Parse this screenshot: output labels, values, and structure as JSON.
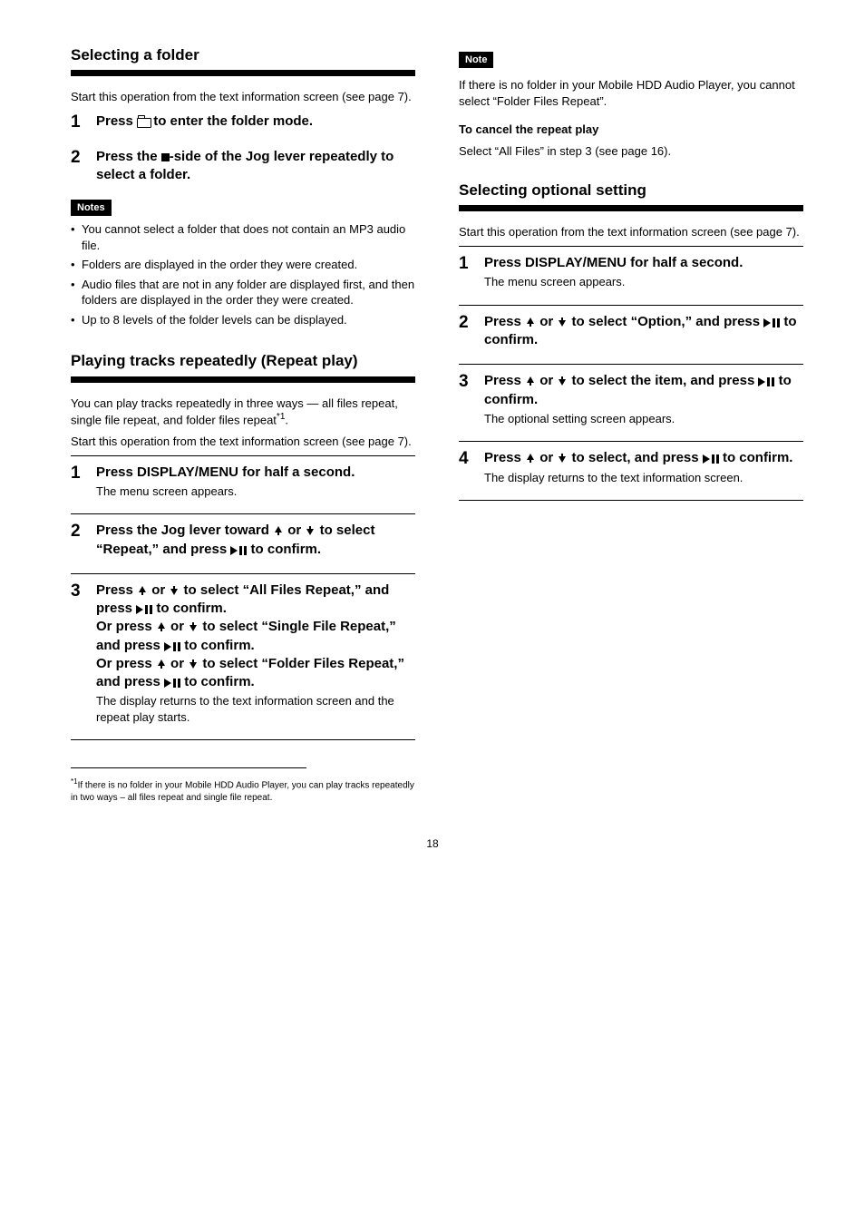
{
  "page_number": "18",
  "left": {
    "folder_section": {
      "title": "Selecting a folder",
      "intro": "Start this operation from the text information screen (see page 7).",
      "steps": [
        {
          "num": "1",
          "html": "Press <span class='folder-icon' data-name='folder-icon' data-interactable='false'></span> to enter the folder mode."
        },
        {
          "num": "2",
          "html": "Press the <span class='stop-icon' data-name='stop-icon' data-interactable='false'></span>-side of the Jog lever repeatedly to select a folder."
        }
      ],
      "note_label": "Notes",
      "notes": [
        "You cannot select a folder that does not contain an MP3 audio file.",
        "Folders are displayed in the order they were created.",
        "Audio files that are not in any folder are displayed first, and then folders are displayed in the order they were created.",
        "Up to 8 levels of the folder levels can be displayed."
      ]
    },
    "repeat_section": {
      "title": "Playing tracks repeatedly (Repeat play)",
      "intro": "You can play tracks repeatedly in three ways — all files repeat, single file repeat, and folder files repeat<span class='sup'>*1</span>.",
      "intro2": "Start this operation from the text information screen (see page 7).",
      "steps": [
        {
          "num": "1",
          "html": "Press DISPLAY/MENU for half a second.<div class='substep'>The menu screen appears.</div>"
        },
        {
          "num": "2",
          "html": "Press the Jog lever toward <svg class='inline-icon' data-name='up-arrow-icon' data-interactable='false' width='12' height='12' viewBox='0 0 12 12'><path d='M6 1 L10 8 L7 8 L7 11 L5 11 L5 8 L2 8 Z' fill='#000'/></svg> or <svg class='inline-icon' data-name='down-arrow-icon' data-interactable='false' width='12' height='12' viewBox='0 0 12 12'><path d='M6 11 L2 4 L5 4 L5 1 L7 1 L7 4 L10 4 Z' fill='#000'/></svg> to select “Repeat,” and press <svg class='inline-icon' data-name='play-pause-icon' data-interactable='false' width='18' height='10' viewBox='0 0 18 10'><path d='M0 0 L8 5 L0 10 Z M10 0 H13 V10 H10 Z M15 0 H18 V10 H15 Z' fill='#000'/></svg> to confirm."
        },
        {
          "num": "3",
          "html": "Press <svg class='inline-icon' data-name='up-arrow-icon' data-interactable='false' width='12' height='12' viewBox='0 0 12 12'><path d='M6 1 L10 8 L7 8 L7 11 L5 11 L5 8 L2 8 Z' fill='#000'/></svg> or <svg class='inline-icon' data-name='down-arrow-icon' data-interactable='false' width='12' height='12' viewBox='0 0 12 12'><path d='M6 11 L2 4 L5 4 L5 1 L7 1 L7 4 L10 4 Z' fill='#000'/></svg> to select “All Files Repeat,” and press <svg class='inline-icon' data-name='play-pause-icon' data-interactable='false' width='18' height='10' viewBox='0 0 18 10'><path d='M0 0 L8 5 L0 10 Z M10 0 H13 V10 H10 Z M15 0 H18 V10 H15 Z' fill='#000'/></svg> to confirm.<br>Or press <svg class='inline-icon' data-name='up-arrow-icon' data-interactable='false' width='12' height='12' viewBox='0 0 12 12'><path d='M6 1 L10 8 L7 8 L7 11 L5 11 L5 8 L2 8 Z' fill='#000'/></svg> or <svg class='inline-icon' data-name='down-arrow-icon' data-interactable='false' width='12' height='12' viewBox='0 0 12 12'><path d='M6 11 L2 4 L5 4 L5 1 L7 1 L7 4 L10 4 Z' fill='#000'/></svg> to select “Single File Repeat,” and press <svg class='inline-icon' data-name='play-pause-icon' data-interactable='false' width='18' height='10' viewBox='0 0 18 10'><path d='M0 0 L8 5 L0 10 Z M10 0 H13 V10 H10 Z M15 0 H18 V10 H15 Z' fill='#000'/></svg> to confirm.<br>Or press <svg class='inline-icon' data-name='up-arrow-icon' data-interactable='false' width='12' height='12' viewBox='0 0 12 12'><path d='M6 1 L10 8 L7 8 L7 11 L5 11 L5 8 L2 8 Z' fill='#000'/></svg> or <svg class='inline-icon' data-name='down-arrow-icon' data-interactable='false' width='12' height='12' viewBox='0 0 12 12'><path d='M6 11 L2 4 L5 4 L5 1 L7 1 L7 4 L10 4 Z' fill='#000'/></svg> to select “Folder Files Repeat,” and press <svg class='inline-icon' data-name='play-pause-icon' data-interactable='false' width='18' height='10' viewBox='0 0 18 10'><path d='M0 0 L8 5 L0 10 Z M10 0 H13 V10 H10 Z M15 0 H18 V10 H15 Z' fill='#000'/></svg> to confirm.<div class='substep'>The display returns to the text information screen and the repeat play starts.</div>"
        }
      ],
      "footnote": "<sup>*1</sup>If there is no folder in your Mobile HDD Audio Player, you can play tracks repeatedly in two ways – all files repeat and single file repeat."
    }
  },
  "right": {
    "repeat_cont": {
      "note_label": "Note",
      "note_text": "If there is no folder in your Mobile HDD Audio Player, you cannot select “Folder Files Repeat”.",
      "cancel_title": "To cancel the repeat play",
      "cancel_text": "Select “All Files” in step 3 (see page 16)."
    },
    "optional_section": {
      "title": "Selecting optional setting",
      "intro": "Start this operation from the text information screen (see page 7).",
      "steps": [
        {
          "num": "1",
          "html": "Press DISPLAY/MENU for half a second.<div class='substep'>The menu screen appears.</div>"
        },
        {
          "num": "2",
          "html": "Press <svg class='inline-icon' data-name='up-arrow-icon' data-interactable='false' width='12' height='12' viewBox='0 0 12 12'><path d='M6 1 L10 8 L7 8 L7 11 L5 11 L5 8 L2 8 Z' fill='#000'/></svg> or <svg class='inline-icon' data-name='down-arrow-icon' data-interactable='false' width='12' height='12' viewBox='0 0 12 12'><path d='M6 11 L2 4 L5 4 L5 1 L7 1 L7 4 L10 4 Z' fill='#000'/></svg> to select “Option,” and press <svg class='inline-icon' data-name='play-pause-icon' data-interactable='false' width='18' height='10' viewBox='0 0 18 10'><path d='M0 0 L8 5 L0 10 Z M10 0 H13 V10 H10 Z M15 0 H18 V10 H15 Z' fill='#000'/></svg> to confirm."
        },
        {
          "num": "3",
          "html": "Press <svg class='inline-icon' data-name='up-arrow-icon' data-interactable='false' width='12' height='12' viewBox='0 0 12 12'><path d='M6 1 L10 8 L7 8 L7 11 L5 11 L5 8 L2 8 Z' fill='#000'/></svg> or <svg class='inline-icon' data-name='down-arrow-icon' data-interactable='false' width='12' height='12' viewBox='0 0 12 12'><path d='M6 11 L2 4 L5 4 L5 1 L7 1 L7 4 L10 4 Z' fill='#000'/></svg> to select the item, and press <svg class='inline-icon' data-name='play-pause-icon' data-interactable='false' width='18' height='10' viewBox='0 0 18 10'><path d='M0 0 L8 5 L0 10 Z M10 0 H13 V10 H10 Z M15 0 H18 V10 H15 Z' fill='#000'/></svg> to confirm.<div class='substep'>The optional setting screen appears.</div>"
        },
        {
          "num": "4",
          "html": "Press <svg class='inline-icon' data-name='up-arrow-icon' data-interactable='false' width='12' height='12' viewBox='0 0 12 12'><path d='M6 1 L10 8 L7 8 L7 11 L5 11 L5 8 L2 8 Z' fill='#000'/></svg> or <svg class='inline-icon' data-name='down-arrow-icon' data-interactable='false' width='12' height='12' viewBox='0 0 12 12'><path d='M6 11 L2 4 L5 4 L5 1 L7 1 L7 4 L10 4 Z' fill='#000'/></svg> to select, and press <svg class='inline-icon' data-name='play-pause-icon' data-interactable='false' width='18' height='10' viewBox='0 0 18 10'><path d='M0 0 L8 5 L0 10 Z M10 0 H13 V10 H10 Z M15 0 H18 V10 H15 Z' fill='#000'/></svg> to confirm.<div class='substep'>The display returns to the text information screen.</div>"
        }
      ]
    }
  }
}
